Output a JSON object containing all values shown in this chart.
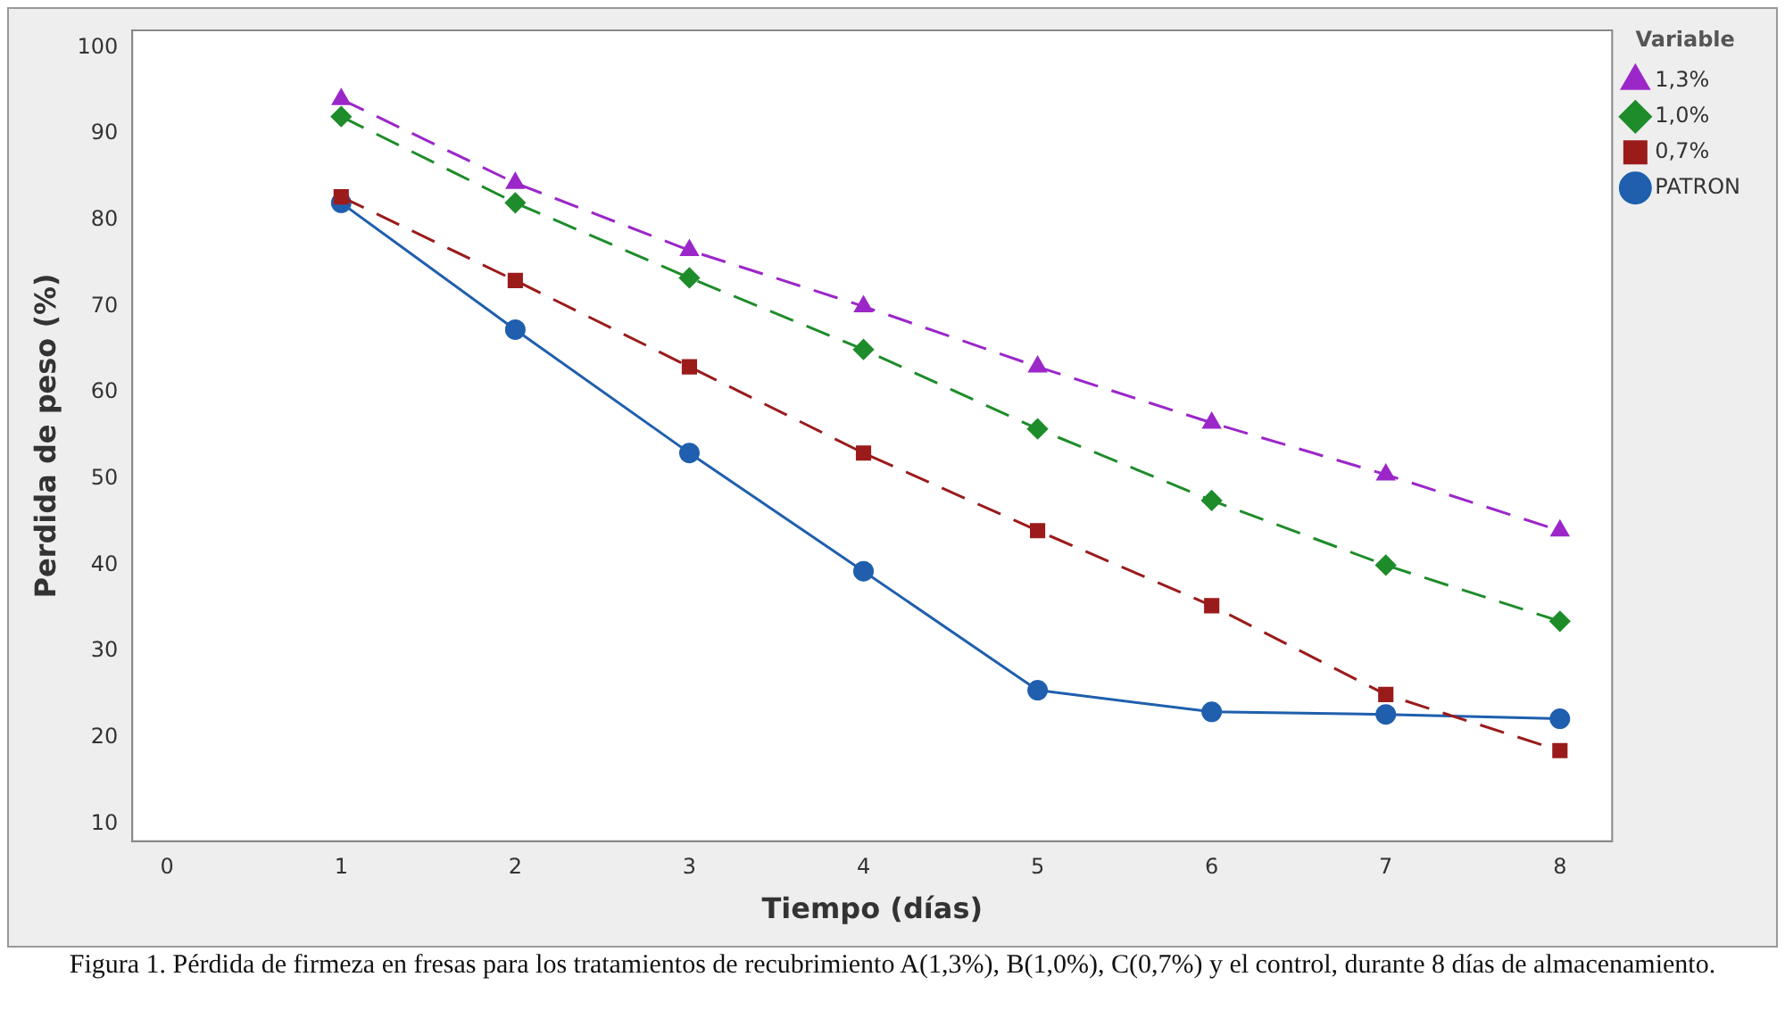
{
  "chart_data": {
    "type": "line",
    "xlabel": "Tiempo (días)",
    "ylabel": "Perdida de peso (%)",
    "legend_title": "Variable",
    "legend": "right",
    "x": [
      1,
      2,
      3,
      4,
      5,
      6,
      7,
      8
    ],
    "xlim": [
      -0.2,
      8.3
    ],
    "xticks": [
      0,
      1,
      2,
      3,
      4,
      5,
      6,
      7,
      8
    ],
    "ylim": [
      8,
      102
    ],
    "yticks": [
      10,
      20,
      30,
      40,
      50,
      60,
      70,
      80,
      90,
      100
    ],
    "grid": false,
    "series": [
      {
        "name": "PATRON",
        "color": "#1f5fae",
        "marker": "circle",
        "line_style": "solid",
        "values": [
          82,
          67.3,
          53,
          39.3,
          25.5,
          23,
          22.7,
          22.2
        ]
      },
      {
        "name": "0,7%",
        "color": "#9b1b1b",
        "marker": "square",
        "line_style": "dashed",
        "values": [
          82.7,
          73,
          63,
          53,
          44,
          35.3,
          25,
          18.5
        ]
      },
      {
        "name": "1,0%",
        "color": "#1e8c2a",
        "marker": "diamond",
        "line_style": "dashed",
        "values": [
          92,
          82,
          73.3,
          65,
          55.8,
          47.5,
          40,
          33.5
        ]
      },
      {
        "name": "1,3%",
        "color": "#9b27c9",
        "marker": "triangle",
        "line_style": "dashed",
        "values": [
          94,
          84.3,
          76.5,
          70,
          63,
          56.5,
          50.5,
          44
        ]
      }
    ],
    "annotations": [
      "Figura 1. Pérdida de firmeza en fresas para los tratamientos de recubrimiento A(1,3%), B(1,0%), C(0,7%) y el control, durante 8 días de almacenamiento."
    ]
  }
}
